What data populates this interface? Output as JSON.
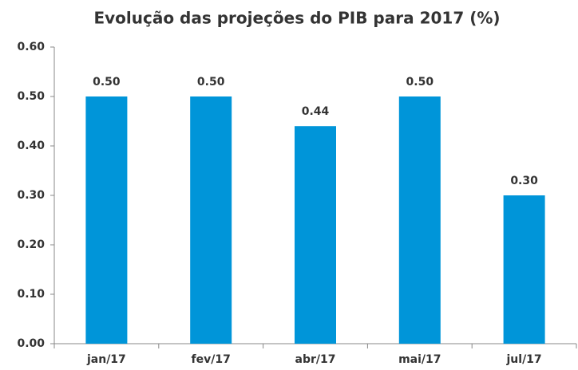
{
  "chart_data": {
    "type": "bar",
    "title": "Evolução das projeções do PIB para 2017 (%)",
    "categories": [
      "jan/17",
      "fev/17",
      "abr/17",
      "mai/17",
      "jul/17"
    ],
    "values": [
      0.5,
      0.5,
      0.44,
      0.5,
      0.3
    ],
    "value_labels": [
      "0.50",
      "0.50",
      "0.44",
      "0.50",
      "0.30"
    ],
    "color": "#0095d9",
    "ylim": [
      0,
      0.6
    ],
    "yticks": [
      {
        "value": 0,
        "label": "0.00"
      },
      {
        "value": 0.1,
        "label": "0.10"
      },
      {
        "value": 0.2,
        "label": "0.20"
      },
      {
        "value": 0.3,
        "label": "0.30"
      },
      {
        "value": 0.4,
        "label": "0.40"
      },
      {
        "value": 0.5,
        "label": "0.50"
      },
      {
        "value": 0.6,
        "label": "0.60"
      }
    ],
    "grid": false
  }
}
